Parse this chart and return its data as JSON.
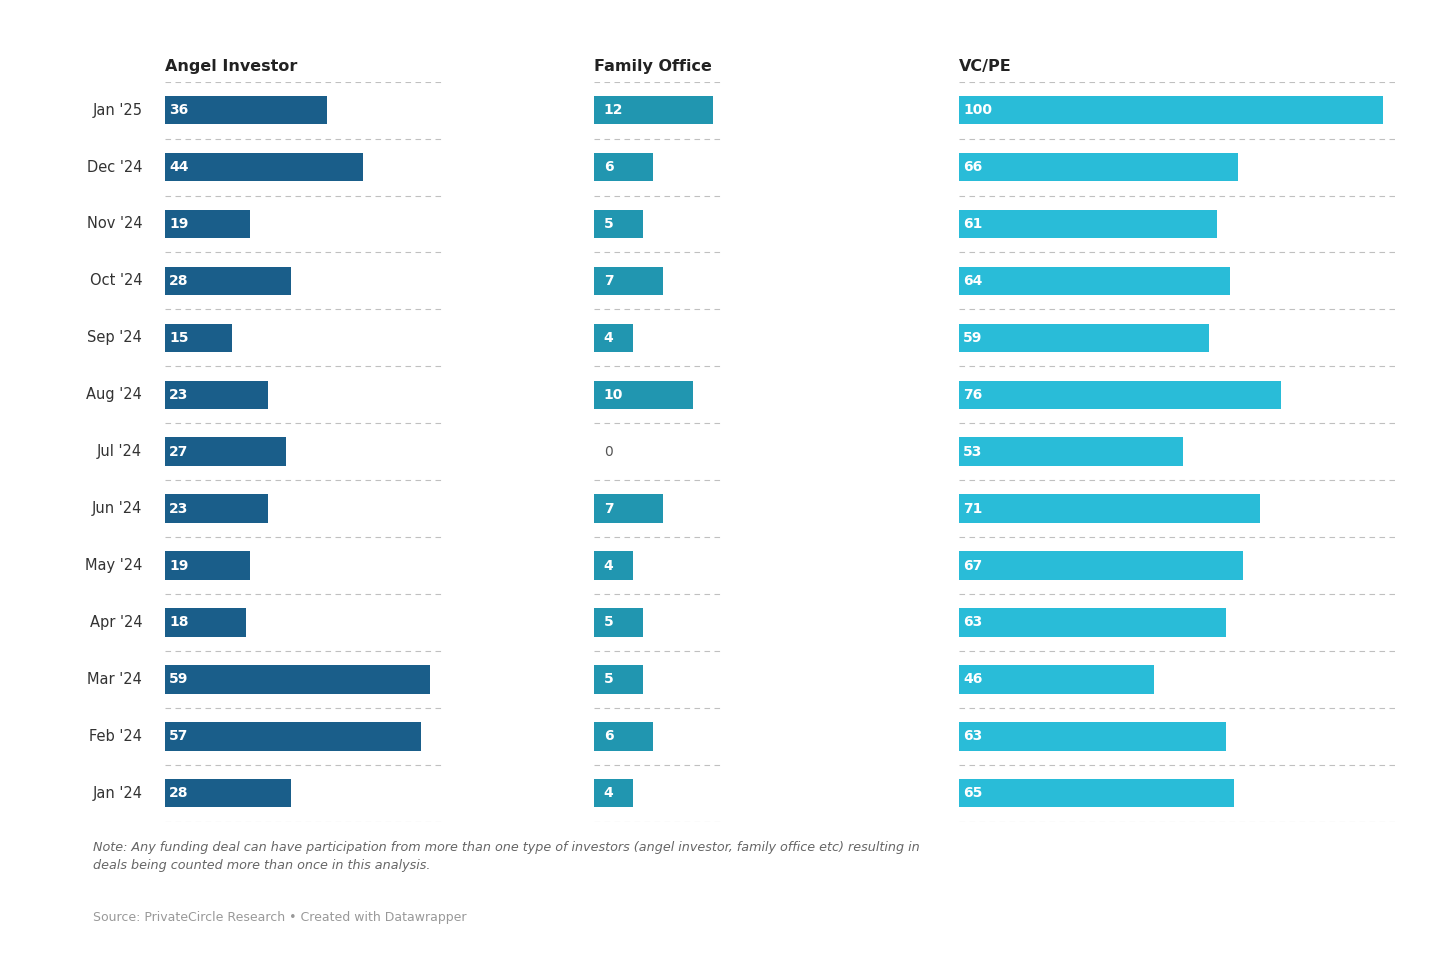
{
  "months": [
    "Jan '25",
    "Dec '24",
    "Nov '24",
    "Oct '24",
    "Sep '24",
    "Aug '24",
    "Jul '24",
    "Jun '24",
    "May '24",
    "Apr '24",
    "Mar '24",
    "Feb '24",
    "Jan '24"
  ],
  "angel": [
    36,
    44,
    19,
    28,
    15,
    23,
    27,
    23,
    19,
    18,
    59,
    57,
    28
  ],
  "family": [
    12,
    6,
    5,
    7,
    4,
    10,
    0,
    7,
    4,
    5,
    5,
    6,
    4
  ],
  "vcpe": [
    100,
    66,
    61,
    64,
    59,
    76,
    53,
    71,
    67,
    63,
    46,
    63,
    65
  ],
  "angel_color": "#1a5e8a",
  "family_color": "#2196b0",
  "vcpe_color": "#29bcd8",
  "col_headers": [
    "Angel Investor",
    "Family Office",
    "VC/PE"
  ],
  "note_text": "Note: Any funding deal can have participation from more than one type of investors (angel investor, family office etc) resulting in\ndeals being counted more than once in this analysis.",
  "source_text": "Source: PrivateCircle Research • Created with Datawrapper",
  "bg_color": "#ffffff",
  "angel_max": 62,
  "family_max": 13,
  "vcpe_max": 103
}
